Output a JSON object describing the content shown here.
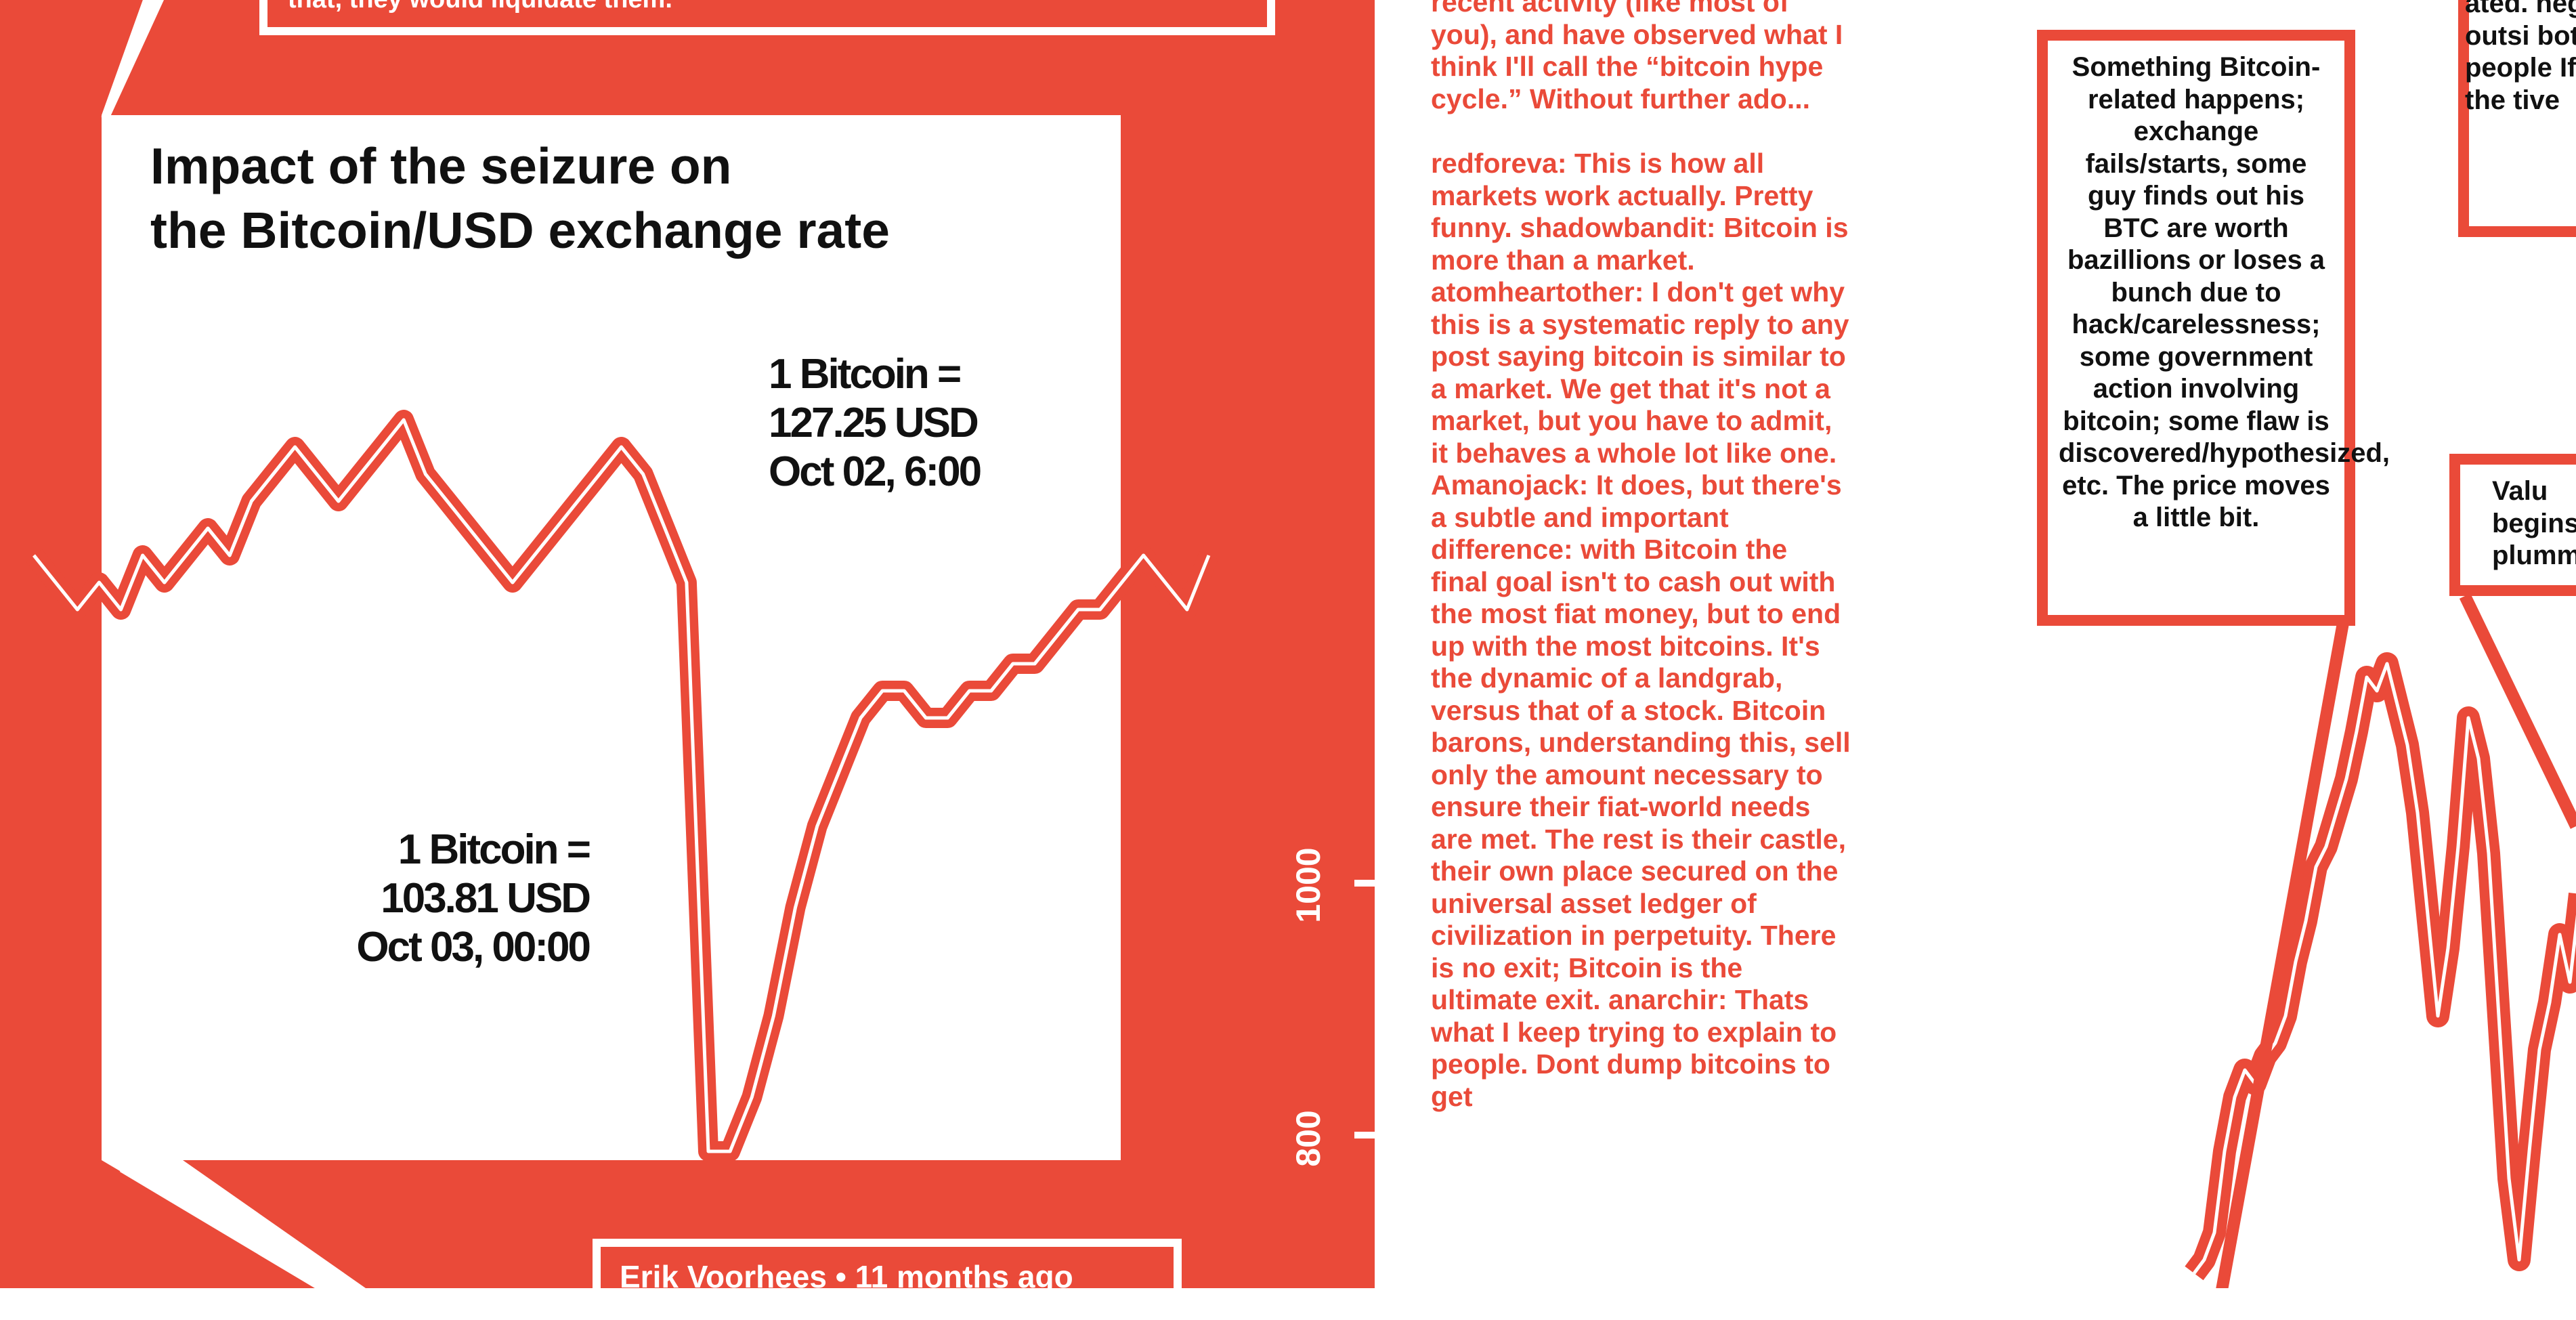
{
  "top_quote": "that, they would liquidate them.",
  "chart": {
    "title_line1": "Impact of the seizure on",
    "title_line2": "the Bitcoin/USD exchange rate",
    "annot_before": {
      "line1": "1 Bitcoin =",
      "line2": "127.25 USD",
      "line3": "Oct 02, 6:00"
    },
    "annot_low": {
      "line1": "1 Bitcoin =",
      "line2": "103.81 USD",
      "line3": "Oct 03, 00:00"
    }
  },
  "chart_data": {
    "type": "line",
    "title": "Impact of the seizure on the Bitcoin/USD exchange rate",
    "xlabel": "",
    "ylabel": "",
    "series": [
      {
        "values": [
          126,
          125,
          124,
          125,
          124,
          126,
          125,
          126,
          127,
          126,
          128,
          129,
          130,
          129,
          128,
          129,
          130,
          131,
          129,
          128,
          127,
          126,
          125,
          126,
          127,
          128,
          129,
          130,
          129,
          127,
          125,
          104,
          104,
          106,
          109,
          113,
          116,
          118,
          120,
          121,
          121,
          120,
          120,
          121,
          121,
          122,
          122,
          123,
          124,
          124,
          125,
          126,
          125,
          124,
          126
        ]
      }
    ],
    "annotations": [
      "1 Bitcoin = 127.25 USD Oct 02, 6:00",
      "1 Bitcoin = 103.81 USD Oct 03, 00:00"
    ]
  },
  "byline": "Erik Voorhees • 11 months ago",
  "y_axis": {
    "label_1000": "1000",
    "label_800": "800"
  },
  "comments": {
    "intro": "recent activity (like most of you), and have observed what I think I'll call the “bitcoin hype cycle.” Without further ado...",
    "body": "redforeva: This is how all markets work actually. Pretty funny. shadowbandit: Bitcoin is more than a market. atomheartother: I don't get why this is a systematic reply to any post saying bitcoin is similar to a market. We get that it's not a market, but you have to admit, it behaves a whole lot like one. Amanojack: It does, but there's a subtle and important difference: with Bitcoin the final goal isn't to cash out with the most fiat money, but to end up with the most bitcoins. It's the dynamic of a landgrab, versus that of a stock. Bitcoin barons, understanding this, sell only the amount necessary to ensure their fiat-world needs are met. The rest is their castle, their own place secured on the universal asset ledger of civilization in perpetuity. There is no exit; Bitcoin is the ultimate exit. anarchir: Thats what I keep trying to explain to people. Dont dump bitcoins to get"
  },
  "boxes": {
    "something": "Something Bitcoin-related happens; exchange fails/starts, some guy finds out his BTC are worth bazillions or loses a bunch due to hack/carelessness; some government action involving bitcoin; some flaw is discovered/hypothesized, etc. The price moves a little bit.",
    "top_right": "ated. negat outsi both people If the tive",
    "value": "Valu begins plumm"
  },
  "colors": {
    "red": "#ea4a39",
    "white": "#ffffff",
    "black": "#111111"
  }
}
